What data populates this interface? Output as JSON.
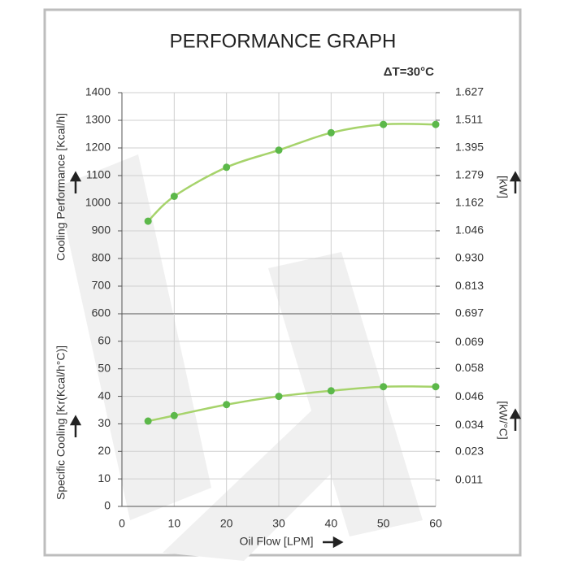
{
  "chart_data": [
    {
      "type": "line",
      "title": "PERFORMANCE GRAPH",
      "annotation": "ΔT=30°C",
      "y_label": "Cooling Performance [Kcal/h]",
      "y2_label": "[kW]",
      "x": [
        5,
        10,
        20,
        30,
        40,
        50,
        60
      ],
      "values": [
        935,
        1025,
        1130,
        1192,
        1255,
        1285,
        1285
      ],
      "line_color": "#a6d36b",
      "point_color": "#5cb84a",
      "xlim": [
        0,
        60
      ],
      "xticks": [
        0,
        10,
        20,
        30,
        40,
        50,
        60
      ],
      "ylim": [
        600,
        1400
      ],
      "yticks": [
        600,
        700,
        800,
        900,
        1000,
        1100,
        1200,
        1300,
        1400
      ],
      "y2lim": [
        0.697,
        1.627
      ],
      "y2ticks": [
        0.697,
        0.813,
        {
          "value": 0.93,
          "label": "0.930"
        },
        1.046,
        1.162,
        1.279,
        1.395,
        1.511,
        1.627
      ],
      "grid": true
    },
    {
      "type": "line",
      "y_label": "Specific Cooling [Kr(Kcal/h°C)]",
      "y2_label": "[kW/°C]",
      "x_label": "Oil Flow [LPM]",
      "x": [
        5,
        10,
        20,
        30,
        40,
        50,
        60
      ],
      "values": [
        31,
        33,
        37,
        40,
        42,
        43.5,
        43.5
      ],
      "line_color": "#a6d36b",
      "point_color": "#5cb84a",
      "xlim": [
        0,
        60
      ],
      "xticks": [
        0,
        10,
        20,
        30,
        40,
        50,
        60
      ],
      "ylim": [
        0,
        70
      ],
      "yticks": [
        0,
        10,
        20,
        30,
        40,
        50,
        60
      ],
      "y2lim": [
        0,
        0.081
      ],
      "y2ticks": [
        0.011,
        0.023,
        0.034,
        0.046,
        0.058,
        0.069
      ],
      "grid": true
    }
  ]
}
